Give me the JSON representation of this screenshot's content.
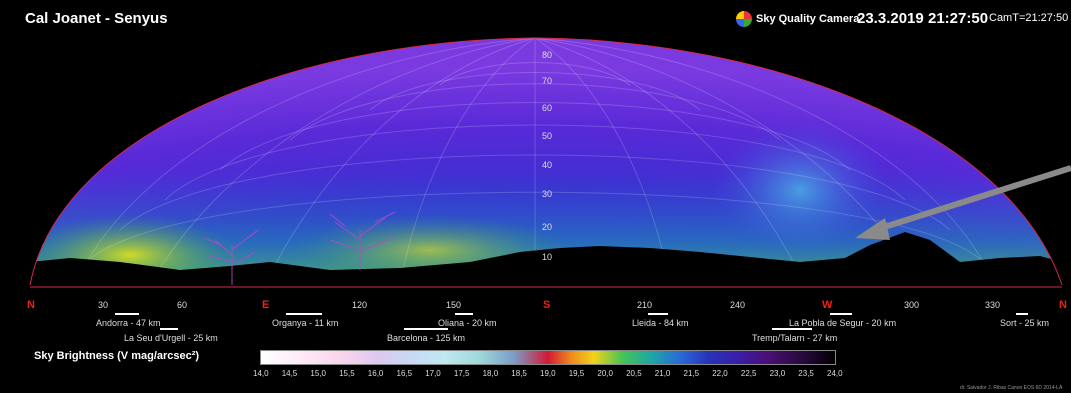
{
  "header": {
    "title": "Cal Joanet - Senyus",
    "brand": "Sky Quality Camera",
    "brand_icon": "sqc-logo-icon",
    "date": "23.3.2019",
    "time": "21:27:50",
    "camt": "CamT=21:27:50"
  },
  "altitude_labels": [
    "80",
    "70",
    "60",
    "50",
    "40",
    "30",
    "20",
    "10"
  ],
  "azimuth": {
    "n_left": "N",
    "e": "E",
    "s": "S",
    "w": "W",
    "n_right": "N",
    "ticks": [
      "30",
      "60",
      "120",
      "150",
      "210",
      "240",
      "300",
      "330"
    ]
  },
  "places": [
    "Andorra - 47 km",
    "La Seu d'Urgell - 25 km",
    "Organya - 11 km",
    "Oliana - 20 km",
    "Barcelona - 125 km",
    "Lleida - 84 km",
    "La Pobla de Segur - 20 km",
    "Tremp/Talarn - 27 km",
    "Sort - 25 km"
  ],
  "legend": {
    "title": "Sky Brightness (V mag/arcsec²)",
    "values": [
      "14,0",
      "14,5",
      "15,0",
      "15,5",
      "16,0",
      "16,5",
      "17,0",
      "17,5",
      "18,0",
      "18,5",
      "19,0",
      "19,5",
      "20,0",
      "20,5",
      "21,0",
      "21,5",
      "22,0",
      "22,5",
      "23,0",
      "23,5",
      "24,0"
    ]
  },
  "credit": "dr. Salvador J. Ribas   Canon EOS 6D   2014-LA",
  "colors": {
    "cardinal": "#e21a1a",
    "arrow": "#8a8a8a",
    "sky": "#3a2ec9"
  }
}
